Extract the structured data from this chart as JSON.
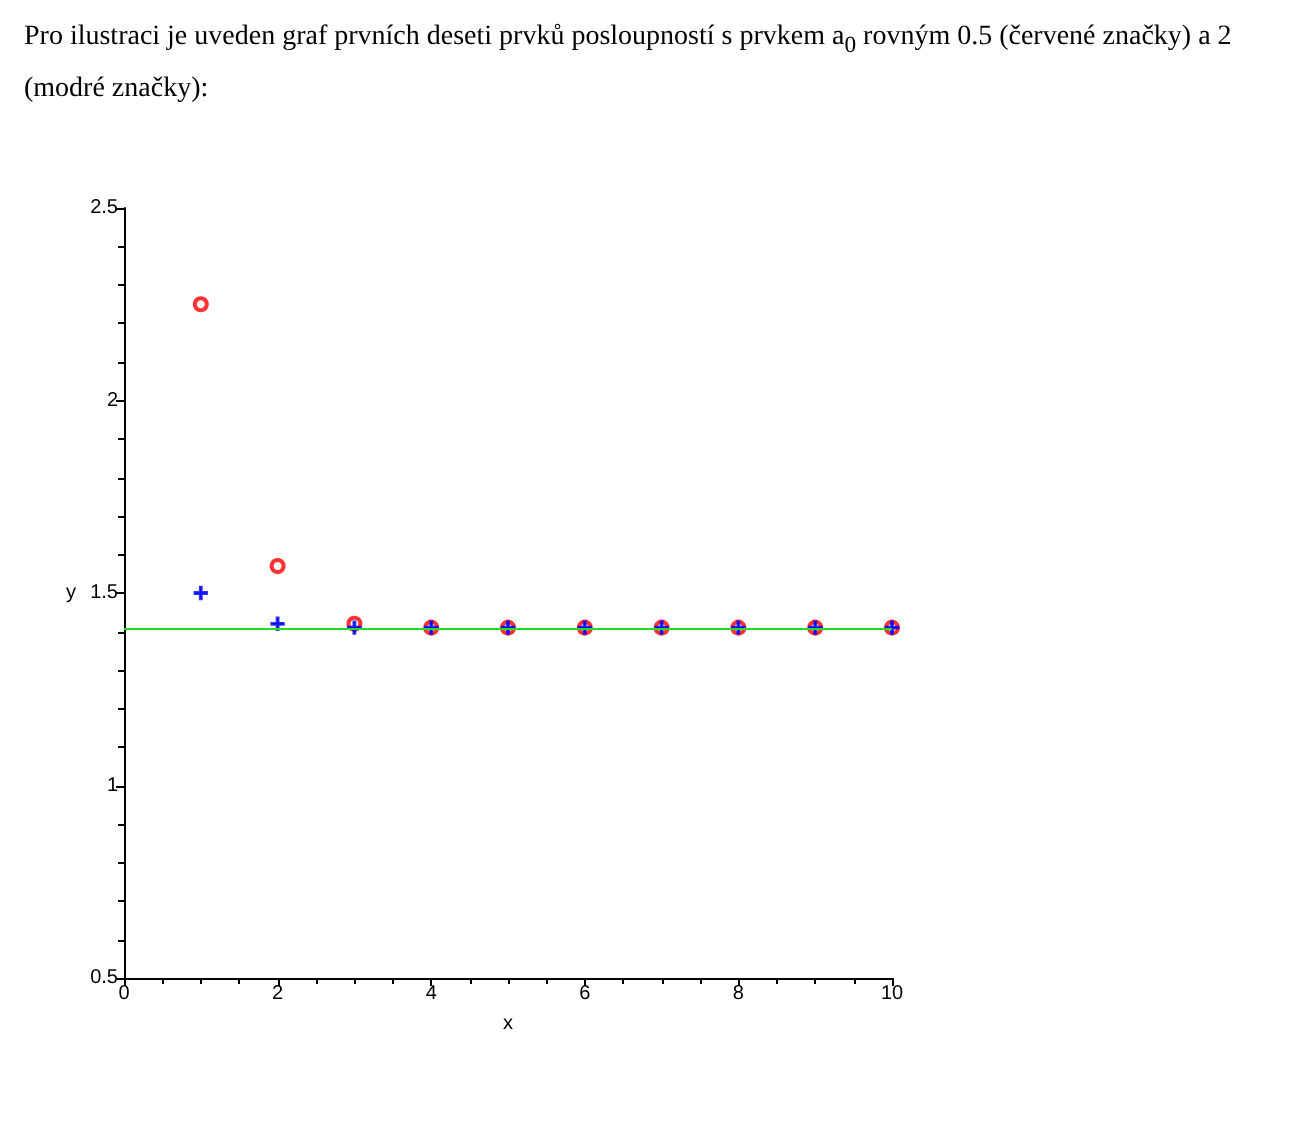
{
  "chart_data": {
    "type": "scatter",
    "title": "Pro ilustraci je uveden graf prvních deseti prvků posloupností s prvkem a$_{0}$ rovným 0.5 (červené značky) a 2 (modré značky):",
    "xlabel": "x",
    "ylabel": "y",
    "x": [
      1,
      2,
      3,
      4,
      5,
      6,
      7,
      8,
      9,
      10
    ],
    "series": [
      {
        "color": "#ff0000",
        "marker": "circle",
        "values": [
          2.25,
          1.57,
          1.42,
          1.41,
          1.41,
          1.41,
          1.41,
          1.41,
          1.41,
          1.41
        ]
      },
      {
        "color": "#0000ff",
        "marker": "cross",
        "values": [
          1.5,
          1.42,
          1.41,
          1.41,
          1.41,
          1.41,
          1.41,
          1.41,
          1.41,
          1.41
        ]
      }
    ],
    "ref_lines": [
      {
        "axis": "y",
        "value": 1.414,
        "color": "#22dd22"
      }
    ],
    "xlim": [
      0,
      10
    ],
    "xticks": [
      0,
      2,
      4,
      6,
      8,
      10
    ],
    "ylim": [
      0.5,
      2.5
    ],
    "yticks": [
      0.5,
      1,
      1.5,
      2,
      2.5
    ],
    "grid": false
  }
}
